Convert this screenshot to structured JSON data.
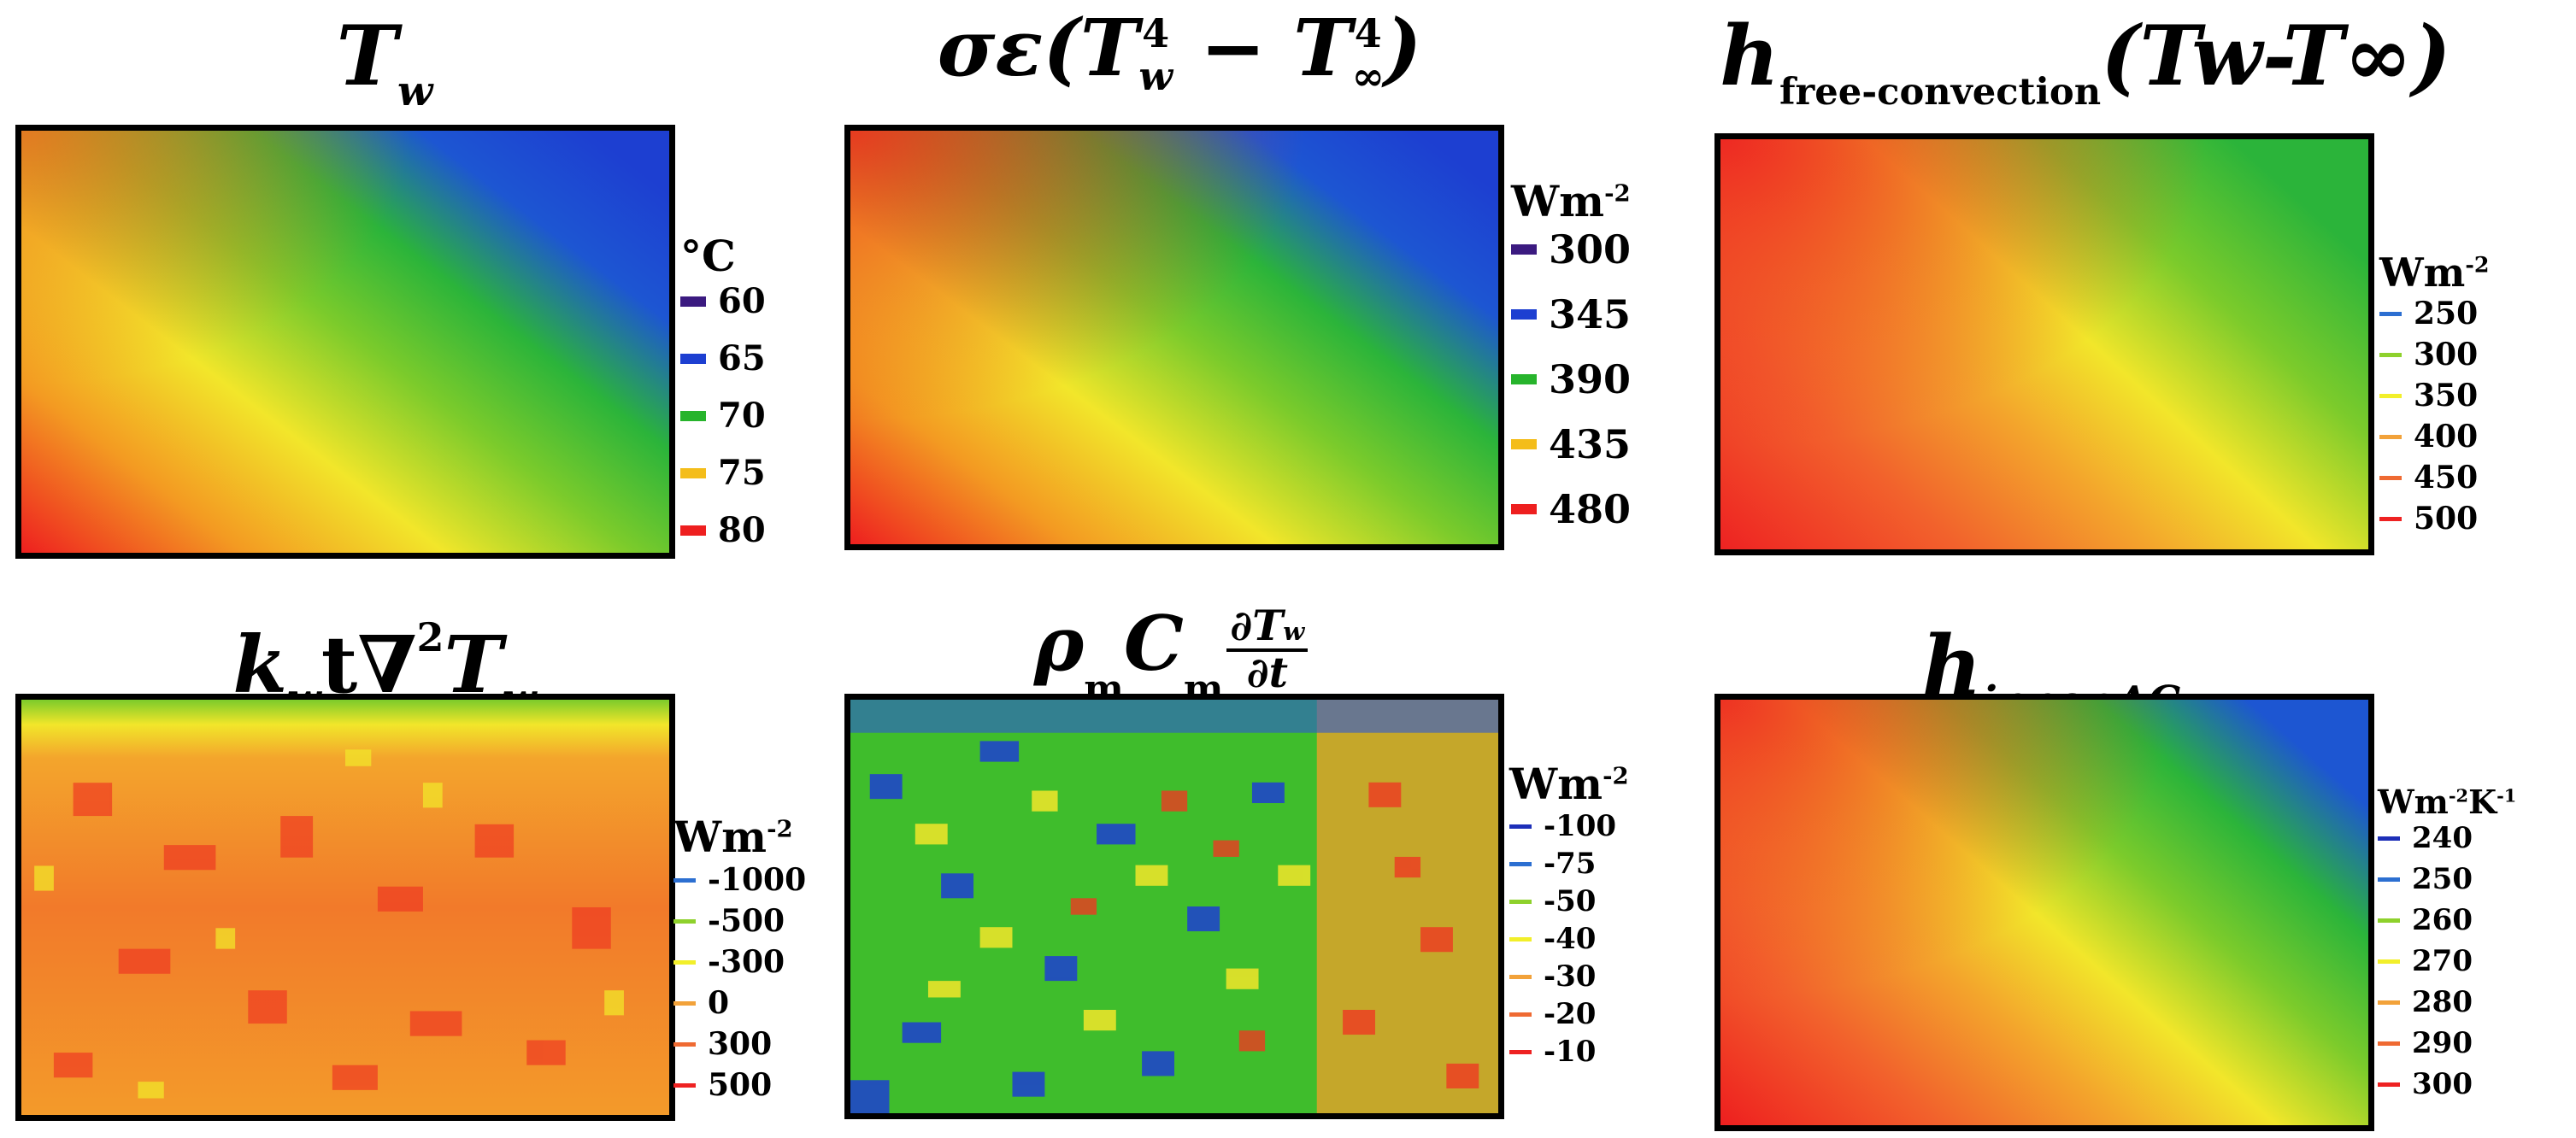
{
  "panels": [
    {
      "id": "tw",
      "title": {
        "main": "T",
        "sub": "w"
      },
      "legend": {
        "unit": "°C",
        "unit_sup": "",
        "items": [
          {
            "label": "60",
            "color": "#3b1a80"
          },
          {
            "label": "65",
            "color": "#1d3fd1"
          },
          {
            "label": "70",
            "color": "#27b42c"
          },
          {
            "label": "75",
            "color": "#f4bd1a"
          },
          {
            "label": "80",
            "color": "#ee1f1f"
          }
        ]
      }
    },
    {
      "id": "rad",
      "title": {
        "pre": "σε(",
        "t1": "T",
        "s1": "w",
        "p1": "4",
        "mid": " − ",
        "t2": "T",
        "s2": "∞",
        "p2": "4",
        "post": ")"
      },
      "legend": {
        "unit": "Wm",
        "unit_sup": "-2",
        "items": [
          {
            "label": "300",
            "color": "#3b1a80"
          },
          {
            "label": "345",
            "color": "#1d3fd1"
          },
          {
            "label": "390",
            "color": "#27b42c"
          },
          {
            "label": "435",
            "color": "#f4bd1a"
          },
          {
            "label": "480",
            "color": "#ee1f1f"
          }
        ]
      }
    },
    {
      "id": "free",
      "title": {
        "h": "h",
        "sub": "free-convection",
        "rest": "(Tw-T∞)"
      },
      "legend": {
        "unit": "Wm",
        "unit_sup": "-2",
        "items": [
          {
            "label": "250",
            "color": "#2c6fd1"
          },
          {
            "label": "300",
            "color": "#8ed12c"
          },
          {
            "label": "350",
            "color": "#f2ef2a"
          },
          {
            "label": "400",
            "color": "#f2a23a"
          },
          {
            "label": "450",
            "color": "#ef6a32"
          },
          {
            "label": "500",
            "color": "#ee2222"
          }
        ]
      }
    },
    {
      "id": "cond",
      "title": {
        "k": "k",
        "ksub": "w",
        "t": "t∇",
        "p": "2",
        "T": "T",
        "sub": "w"
      },
      "legend": {
        "unit": "Wm",
        "unit_sup": "-2",
        "items": [
          {
            "label": "-1000",
            "color": "#2c6fd1"
          },
          {
            "label": "-500",
            "color": "#8ed12c"
          },
          {
            "label": "-300",
            "color": "#f2ef2a"
          },
          {
            "label": "0",
            "color": "#f2a23a"
          },
          {
            "label": "300",
            "color": "#ef6a32"
          },
          {
            "label": "500",
            "color": "#ee2222"
          }
        ]
      }
    },
    {
      "id": "storage",
      "title": {
        "rho": "ρ",
        "rsub": "m",
        "C": "C",
        "csub": "m",
        "num": "∂T",
        "numsub": "w",
        "den": "∂t"
      },
      "legend": {
        "unit": "Wm",
        "unit_sup": "-2",
        "items": [
          {
            "label": "-100",
            "color": "#1d2fb8"
          },
          {
            "label": "-75",
            "color": "#2c6fd1"
          },
          {
            "label": "-50",
            "color": "#8ed12c"
          },
          {
            "label": "-40",
            "color": "#f2ef2a"
          },
          {
            "label": "-30",
            "color": "#f2a23a"
          },
          {
            "label": "-20",
            "color": "#ef6a32"
          },
          {
            "label": "-10",
            "color": "#ee2222"
          }
        ]
      }
    },
    {
      "id": "inner",
      "title": {
        "h": "h",
        "sub": "inner,AC"
      },
      "legend": {
        "unit": "Wm",
        "unit_sup": "-2",
        "unit2": "K",
        "unit2_sup": "-1",
        "items": [
          {
            "label": "240",
            "color": "#1d2fb8"
          },
          {
            "label": "250",
            "color": "#2c6fd1"
          },
          {
            "label": "260",
            "color": "#8ed12c"
          },
          {
            "label": "270",
            "color": "#f2ef2a"
          },
          {
            "label": "280",
            "color": "#f2a23a"
          },
          {
            "label": "290",
            "color": "#ef6a32"
          },
          {
            "label": "300",
            "color": "#ee2222"
          }
        ]
      }
    }
  ]
}
